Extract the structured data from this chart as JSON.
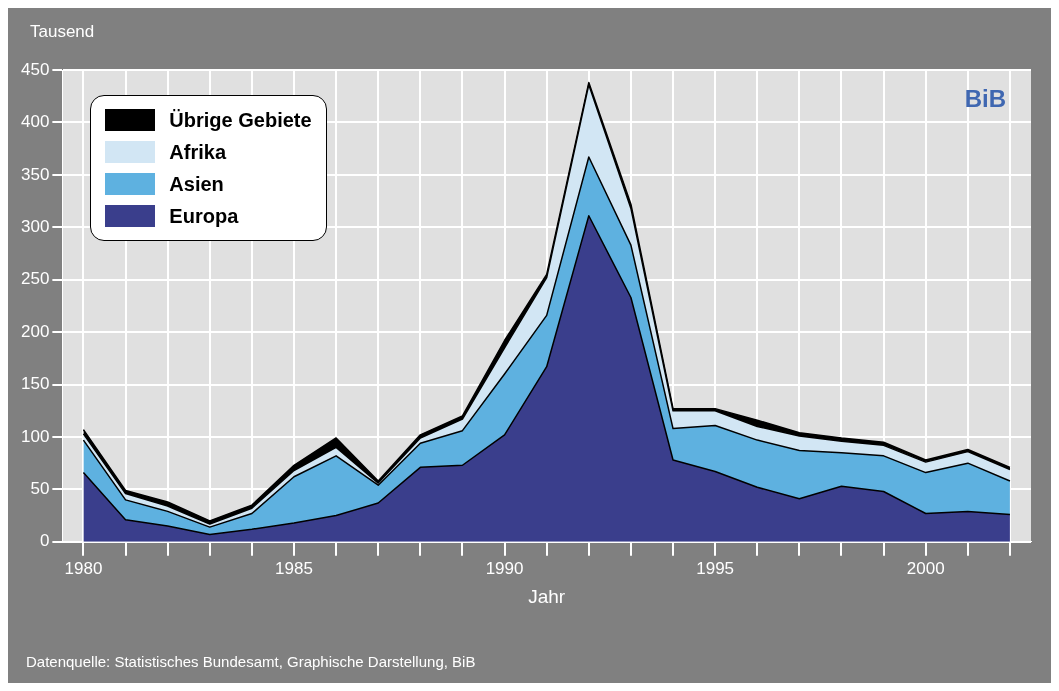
{
  "chart_data": {
    "type": "area",
    "stacked": true,
    "ylabel": "Tausend",
    "xlabel": "Jahr",
    "x": [
      1980,
      1981,
      1982,
      1983,
      1984,
      1985,
      1986,
      1987,
      1988,
      1989,
      1990,
      1991,
      1992,
      1993,
      1994,
      1995,
      1996,
      1997,
      1998,
      1999,
      2000,
      2001,
      2002
    ],
    "series": [
      {
        "name": "Europa",
        "color": "#3a3e8c",
        "values": [
          66,
          21,
          15,
          7,
          12,
          18,
          25,
          37,
          71,
          73,
          102,
          167,
          311,
          233,
          78,
          67,
          52,
          41,
          53,
          48,
          27,
          29,
          26
        ]
      },
      {
        "name": "Asien",
        "color": "#5eb1e0",
        "values": [
          31,
          19,
          14,
          7,
          15,
          44,
          57,
          17,
          23,
          33,
          58,
          49,
          56,
          50,
          30,
          44,
          45,
          46,
          32,
          34,
          39,
          46,
          32
        ]
      },
      {
        "name": "Afrika",
        "color": "#d2e6f4",
        "values": [
          6,
          6,
          5,
          3,
          5,
          6,
          8,
          2,
          5,
          11,
          25,
          36,
          69,
          35,
          17,
          14,
          13,
          14,
          11,
          10,
          10,
          11,
          11
        ]
      },
      {
        "name": "Übrige Gebiete",
        "color": "#000000",
        "values": [
          4,
          3,
          4,
          3,
          3,
          5,
          9,
          2,
          3,
          3,
          7,
          3,
          2,
          4,
          2,
          2,
          6,
          3,
          3,
          3,
          2,
          2,
          2
        ]
      }
    ],
    "xlim": [
      1979.5,
      2002.5
    ],
    "xticks": [
      1980,
      {
        "value": 1981,
        "label": null
      },
      {
        "value": 1982,
        "label": null
      },
      {
        "value": 1983,
        "label": null
      },
      {
        "value": 1984,
        "label": null
      },
      1985,
      {
        "value": 1986,
        "label": null
      },
      {
        "value": 1987,
        "label": null
      },
      {
        "value": 1988,
        "label": null
      },
      {
        "value": 1989,
        "label": null
      },
      1990,
      {
        "value": 1991,
        "label": null
      },
      {
        "value": 1992,
        "label": null
      },
      {
        "value": 1993,
        "label": null
      },
      {
        "value": 1994,
        "label": null
      },
      1995,
      {
        "value": 1996,
        "label": null
      },
      {
        "value": 1997,
        "label": null
      },
      {
        "value": 1998,
        "label": null
      },
      {
        "value": 1999,
        "label": null
      },
      2000,
      {
        "value": 2001,
        "label": null
      },
      {
        "value": 2002,
        "label": null
      }
    ],
    "ylim": [
      0,
      450
    ],
    "yticks": [
      0,
      50,
      100,
      150,
      200,
      250,
      300,
      350,
      400,
      450
    ],
    "grid": true,
    "legend": "top left",
    "annotations": [
      "BiB",
      "Datenquelle: Statistisches Bundesamt, Graphische Darstellung, BiB"
    ]
  }
}
